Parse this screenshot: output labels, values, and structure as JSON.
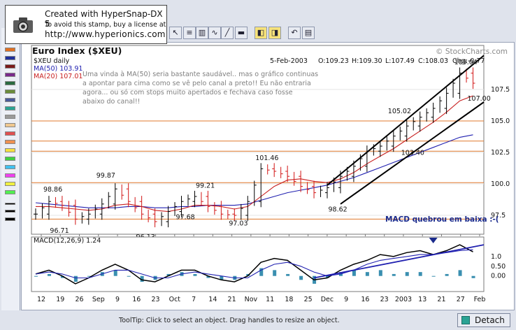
{
  "stamp": {
    "line1": "Created with HyperSnap-DX 5",
    "line2": "To avoid this stamp, buy a license at",
    "line3": "http://www.hyperionics.com"
  },
  "status_bar": {
    "tooltip": "ToolTip: Click to select an object. Drag handles to resize an object.",
    "detach_label": "Detach"
  },
  "colors": {
    "price_up": "#000000",
    "price_down": "#d21414",
    "ma50": "#2020b0",
    "ma20": "#c82020",
    "support_line": "#e0782c",
    "channel": "#000000",
    "macd_hist": "#3a8fb0",
    "annotation_gray": "#808080",
    "annotation_blue": "#1a2a8c"
  },
  "chart_data": [
    {
      "type": "line",
      "subtype": "ohlc",
      "title": "Euro Index ($XEU)",
      "watermark": "© StockCharts.com",
      "symbol_label": "$XEU daily",
      "ma50_label": "MA(50) 103.91",
      "ma20_label": "MA(20) 107.01",
      "header": {
        "date": "5-Feb-2003",
        "open": "O:109.23",
        "high": "H:109.30",
        "low": "L:107.49",
        "close": "C:108.03",
        "change": "Chg:-0.77"
      },
      "ylim": [
        96.0,
        111.0
      ],
      "y_ticks": [
        "97.5",
        "100.0",
        "102.5",
        "105.0",
        "107.5"
      ],
      "x_tick_labels": [
        "12",
        "19",
        "26",
        "Sep",
        "9",
        "16",
        "23",
        "Oct",
        "7",
        "14",
        "21",
        "Nov",
        "11",
        "18",
        "25",
        "Dec",
        "9",
        "16",
        "23",
        "2003",
        "13",
        "21",
        "27",
        "Feb"
      ],
      "annotation_text": [
        "Uma vinda à MA(50) seria bastante saudável.. mas o gráfico continuas",
        "a apontar para cima como se vê pelo canal a preto!! Eu não entraria",
        "agora... ou só com stops muito apertados e fechava caso fosse",
        "abaixo do canal!!"
      ],
      "price_labels": [
        "98.86",
        "96.71",
        "99.87",
        "96.13",
        "97.68",
        "99.21",
        "97.03",
        "101.46",
        "98.62",
        "105.02",
        "103.40",
        "109.04",
        "107.00"
      ],
      "support_levels": [
        97.2,
        100.1,
        102.6,
        103.4,
        105.0
      ],
      "x": [
        0,
        4,
        8,
        12,
        16,
        20,
        24,
        28,
        32,
        36,
        40,
        44,
        48,
        52,
        56,
        60,
        64,
        68,
        72,
        76,
        80,
        84,
        88,
        92,
        96,
        100,
        104,
        108,
        112,
        116,
        120,
        124,
        128,
        132
      ],
      "series": [
        {
          "name": "$XEU",
          "values": [
            97.6,
            98.6,
            98.3,
            97.2,
            97.6,
            98.4,
            99.6,
            98.6,
            97.6,
            97.0,
            97.8,
            98.6,
            99.0,
            98.2,
            97.6,
            97.5,
            98.6,
            101.2,
            101.0,
            100.6,
            99.8,
            99.3,
            99.7,
            100.6,
            101.4,
            102.6,
            103.0,
            103.8,
            104.6,
            105.3,
            106.0,
            107.2,
            108.8,
            108.0
          ]
        },
        {
          "name": "MA(50)",
          "values": [
            98.5,
            98.4,
            98.3,
            98.2,
            98.1,
            98.1,
            98.1,
            98.2,
            98.2,
            98.1,
            98.1,
            98.2,
            98.2,
            98.3,
            98.3,
            98.3,
            98.4,
            98.7,
            99.0,
            99.3,
            99.5,
            99.7,
            99.9,
            100.2,
            100.5,
            100.9,
            101.3,
            101.7,
            102.1,
            102.5,
            102.9,
            103.3,
            103.7,
            103.9
          ]
        },
        {
          "name": "MA(20)",
          "values": [
            98.2,
            98.2,
            98.1,
            98.0,
            97.9,
            98.0,
            98.3,
            98.4,
            98.2,
            97.9,
            97.8,
            98.0,
            98.3,
            98.3,
            98.2,
            98.0,
            98.2,
            99.0,
            99.8,
            100.3,
            100.4,
            100.2,
            100.1,
            100.4,
            100.9,
            101.6,
            102.2,
            102.8,
            103.5,
            104.2,
            104.9,
            105.7,
            106.6,
            107.0
          ]
        }
      ]
    },
    {
      "type": "line",
      "title": "MACD(12,26,9) 1.24",
      "annotation": "MACD quebrou em baixa :-(",
      "ylim": [
        -0.8,
        2.0
      ],
      "y_ticks": [
        "0.00",
        "0.50",
        "1.0"
      ],
      "x": [
        0,
        4,
        8,
        12,
        16,
        20,
        24,
        28,
        32,
        36,
        40,
        44,
        48,
        52,
        56,
        60,
        64,
        68,
        72,
        76,
        80,
        84,
        88,
        92,
        96,
        100,
        104,
        108,
        112,
        116,
        120,
        124,
        128,
        132
      ],
      "series": [
        {
          "name": "MACD",
          "values": [
            0.1,
            0.3,
            0.0,
            -0.4,
            -0.1,
            0.3,
            0.6,
            0.3,
            -0.2,
            -0.3,
            0.0,
            0.3,
            0.3,
            0.0,
            -0.2,
            -0.3,
            0.0,
            0.7,
            0.9,
            0.8,
            0.3,
            -0.2,
            -0.1,
            0.3,
            0.6,
            0.8,
            1.1,
            1.0,
            1.2,
            1.3,
            1.1,
            1.3,
            1.6,
            1.24
          ]
        },
        {
          "name": "Signal",
          "values": [
            0.1,
            0.2,
            0.1,
            -0.1,
            -0.1,
            0.1,
            0.3,
            0.3,
            0.1,
            -0.1,
            -0.1,
            0.1,
            0.2,
            0.1,
            0.0,
            -0.1,
            -0.1,
            0.3,
            0.6,
            0.7,
            0.5,
            0.2,
            0.0,
            0.1,
            0.3,
            0.6,
            0.8,
            0.9,
            1.0,
            1.1,
            1.1,
            1.2,
            1.3,
            1.35
          ]
        },
        {
          "name": "Histogram",
          "values": [
            0.0,
            0.1,
            -0.1,
            -0.3,
            0.0,
            0.2,
            0.3,
            0.0,
            -0.3,
            -0.2,
            0.1,
            0.2,
            0.1,
            -0.1,
            -0.2,
            -0.2,
            0.1,
            0.4,
            0.3,
            0.1,
            -0.2,
            -0.4,
            -0.1,
            0.2,
            0.3,
            0.2,
            0.3,
            0.1,
            0.2,
            0.2,
            0.0,
            0.1,
            0.3,
            -0.11
          ]
        }
      ]
    }
  ]
}
